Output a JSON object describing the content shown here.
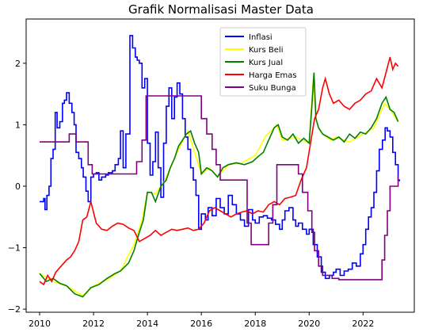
{
  "chart_data": {
    "type": "line",
    "title": "Grafik Normalisasi Master Data",
    "xlabel": "",
    "ylabel": "",
    "xlim": [
      2009.5,
      2023.9
    ],
    "ylim": [
      -2.05,
      2.72
    ],
    "xticks": [
      2010,
      2012,
      2014,
      2016,
      2018,
      2020,
      2022
    ],
    "xtick_labels": [
      "2010",
      "2012",
      "2014",
      "2016",
      "2018",
      "2020",
      "2022"
    ],
    "yticks": [
      -2,
      -1,
      0,
      1,
      2
    ],
    "ytick_labels": [
      "−2",
      "−1",
      "0",
      "1",
      "2"
    ],
    "grid": false,
    "legend_position": "upper center",
    "series": [
      {
        "name": "Inflasi",
        "color": "#0000ff",
        "step": true,
        "x": [
          2010.0,
          2010.15,
          2010.2,
          2010.27,
          2010.35,
          2010.42,
          2010.5,
          2010.58,
          2010.65,
          2010.75,
          2010.85,
          2010.92,
          2011.0,
          2011.1,
          2011.2,
          2011.28,
          2011.35,
          2011.45,
          2011.55,
          2011.62,
          2011.72,
          2011.8,
          2011.9,
          2012.0,
          2012.1,
          2012.2,
          2012.3,
          2012.45,
          2012.55,
          2012.7,
          2012.8,
          2012.92,
          2013.0,
          2013.1,
          2013.2,
          2013.35,
          2013.45,
          2013.55,
          2013.62,
          2013.7,
          2013.8,
          2013.9,
          2014.0,
          2014.1,
          2014.2,
          2014.3,
          2014.4,
          2014.5,
          2014.6,
          2014.7,
          2014.8,
          2014.9,
          2015.0,
          2015.1,
          2015.2,
          2015.3,
          2015.4,
          2015.5,
          2015.6,
          2015.7,
          2015.8,
          2015.9,
          2016.0,
          2016.15,
          2016.25,
          2016.4,
          2016.55,
          2016.7,
          2016.85,
          2017.0,
          2017.15,
          2017.3,
          2017.45,
          2017.6,
          2017.75,
          2017.9,
          2018.0,
          2018.15,
          2018.3,
          2018.45,
          2018.6,
          2018.75,
          2018.9,
          2019.0,
          2019.1,
          2019.25,
          2019.4,
          2019.5,
          2019.6,
          2019.75,
          2019.9,
          2020.0,
          2020.15,
          2020.3,
          2020.45,
          2020.6,
          2020.75,
          2020.9,
          2021.0,
          2021.15,
          2021.3,
          2021.45,
          2021.6,
          2021.75,
          2021.9,
          2022.0,
          2022.1,
          2022.2,
          2022.3,
          2022.4,
          2022.5,
          2022.6,
          2022.72,
          2022.82,
          2022.9,
          2023.0,
          2023.1,
          2023.2,
          2023.3,
          2023.35
        ],
        "y": [
          -0.25,
          -0.2,
          -0.38,
          -0.15,
          0.0,
          0.45,
          0.6,
          1.2,
          0.95,
          1.05,
          1.35,
          1.4,
          1.52,
          1.35,
          1.2,
          1.0,
          0.55,
          0.45,
          0.3,
          0.15,
          -0.08,
          -0.25,
          0.15,
          0.2,
          0.22,
          0.1,
          0.15,
          0.18,
          0.22,
          0.25,
          0.35,
          0.45,
          0.9,
          0.3,
          0.85,
          2.45,
          2.25,
          2.1,
          2.05,
          2.0,
          1.6,
          1.75,
          0.7,
          0.18,
          0.4,
          0.88,
          0.3,
          -0.18,
          0.7,
          1.3,
          1.6,
          1.1,
          1.45,
          1.68,
          1.5,
          1.1,
          0.8,
          0.6,
          0.3,
          0.1,
          -0.15,
          -0.7,
          -0.45,
          -0.55,
          -0.35,
          -0.48,
          -0.2,
          -0.35,
          -0.45,
          -0.15,
          -0.3,
          -0.45,
          -0.55,
          -0.65,
          -0.38,
          -0.55,
          -0.6,
          -0.5,
          -0.48,
          -0.52,
          -0.55,
          -0.62,
          -0.7,
          -0.55,
          -0.4,
          -0.35,
          -0.55,
          -0.65,
          -0.6,
          -0.7,
          -0.78,
          -0.7,
          -0.95,
          -1.15,
          -1.4,
          -1.5,
          -1.45,
          -1.4,
          -1.35,
          -1.45,
          -1.38,
          -1.35,
          -1.25,
          -1.3,
          -1.1,
          -0.95,
          -0.7,
          -0.5,
          -0.35,
          -0.1,
          0.25,
          0.6,
          0.75,
          0.95,
          0.9,
          0.8,
          0.55,
          0.35,
          0.1,
          0.08
        ]
      },
      {
        "name": "Kurs Beli",
        "color": "#ffff00",
        "step": false,
        "x": [
          2010.0,
          2010.5,
          2011.0,
          2011.6,
          2012.0,
          2012.5,
          2013.0,
          2013.5,
          2013.8,
          2014.0,
          2014.3,
          2014.6,
          2014.9,
          2015.2,
          2015.5,
          2015.75,
          2016.0,
          2016.3,
          2016.6,
          2017.0,
          2017.5,
          2018.0,
          2018.4,
          2018.8,
          2019.0,
          2019.5,
          2020.0,
          2020.15,
          2020.25,
          2020.35,
          2020.5,
          2020.8,
          2021.0,
          2021.5,
          2022.0,
          2022.4,
          2022.8,
          2023.0,
          2023.3
        ],
        "y": [
          -1.42,
          -1.55,
          -1.62,
          -1.78,
          -1.62,
          -1.52,
          -1.38,
          -0.95,
          -0.55,
          -0.1,
          -0.12,
          0.05,
          0.35,
          0.65,
          0.9,
          0.55,
          0.2,
          0.3,
          0.15,
          0.35,
          0.38,
          0.5,
          0.82,
          1.0,
          0.75,
          0.8,
          0.7,
          1.75,
          1.1,
          0.95,
          0.85,
          0.75,
          0.8,
          0.72,
          0.85,
          0.95,
          1.35,
          1.25,
          1.05
        ]
      },
      {
        "name": "Kurs Jual",
        "color": "#008000",
        "step": false,
        "x": [
          2010.0,
          2010.25,
          2010.5,
          2010.75,
          2011.0,
          2011.3,
          2011.6,
          2011.9,
          2012.2,
          2012.5,
          2012.8,
          2013.0,
          2013.3,
          2013.5,
          2013.7,
          2013.85,
          2014.0,
          2014.15,
          2014.3,
          2014.5,
          2014.7,
          2014.85,
          2015.0,
          2015.15,
          2015.3,
          2015.45,
          2015.6,
          2015.75,
          2015.9,
          2016.0,
          2016.2,
          2016.4,
          2016.6,
          2016.8,
          2017.0,
          2017.3,
          2017.6,
          2017.9,
          2018.1,
          2018.3,
          2018.5,
          2018.7,
          2018.85,
          2019.0,
          2019.2,
          2019.4,
          2019.6,
          2019.8,
          2020.0,
          2020.1,
          2020.18,
          2020.25,
          2020.35,
          2020.5,
          2020.7,
          2020.9,
          2021.1,
          2021.3,
          2021.5,
          2021.7,
          2021.9,
          2022.1,
          2022.3,
          2022.5,
          2022.7,
          2022.85,
          2023.0,
          2023.15,
          2023.3
        ],
        "y": [
          -1.42,
          -1.55,
          -1.5,
          -1.58,
          -1.62,
          -1.75,
          -1.8,
          -1.65,
          -1.6,
          -1.5,
          -1.42,
          -1.38,
          -1.25,
          -1.05,
          -0.75,
          -0.55,
          -0.1,
          -0.1,
          -0.25,
          0.0,
          0.1,
          0.3,
          0.45,
          0.65,
          0.75,
          0.85,
          0.9,
          0.7,
          0.55,
          0.2,
          0.3,
          0.25,
          0.15,
          0.3,
          0.35,
          0.38,
          0.35,
          0.4,
          0.48,
          0.55,
          0.75,
          0.95,
          1.0,
          0.8,
          0.75,
          0.85,
          0.7,
          0.78,
          0.7,
          1.3,
          1.85,
          1.1,
          0.95,
          0.85,
          0.8,
          0.75,
          0.8,
          0.72,
          0.85,
          0.78,
          0.88,
          0.85,
          0.95,
          1.1,
          1.35,
          1.45,
          1.25,
          1.2,
          1.05
        ]
      },
      {
        "name": "Harga Emas",
        "color": "#ff0000",
        "step": false,
        "x": [
          2010.0,
          2010.15,
          2010.3,
          2010.45,
          2010.6,
          2010.8,
          2011.0,
          2011.15,
          2011.3,
          2011.45,
          2011.6,
          2011.75,
          2011.9,
          2012.1,
          2012.3,
          2012.5,
          2012.7,
          2012.9,
          2013.1,
          2013.3,
          2013.5,
          2013.7,
          2013.9,
          2014.1,
          2014.3,
          2014.5,
          2014.7,
          2014.9,
          2015.1,
          2015.3,
          2015.5,
          2015.7,
          2015.9,
          2016.1,
          2016.3,
          2016.5,
          2016.7,
          2016.9,
          2017.1,
          2017.3,
          2017.5,
          2017.7,
          2017.9,
          2018.1,
          2018.3,
          2018.5,
          2018.7,
          2018.9,
          2019.1,
          2019.3,
          2019.5,
          2019.7,
          2019.9,
          2020.05,
          2020.2,
          2020.35,
          2020.5,
          2020.6,
          2020.75,
          2020.9,
          2021.1,
          2021.3,
          2021.5,
          2021.7,
          2021.9,
          2022.1,
          2022.3,
          2022.5,
          2022.7,
          2022.85,
          2023.0,
          2023.1,
          2023.2,
          2023.3
        ],
        "y": [
          -1.55,
          -1.6,
          -1.45,
          -1.55,
          -1.4,
          -1.3,
          -1.2,
          -1.15,
          -1.05,
          -0.9,
          -0.55,
          -0.5,
          -0.25,
          -0.6,
          -0.7,
          -0.72,
          -0.65,
          -0.6,
          -0.62,
          -0.68,
          -0.72,
          -0.9,
          -0.85,
          -0.8,
          -0.72,
          -0.8,
          -0.75,
          -0.7,
          -0.72,
          -0.7,
          -0.68,
          -0.72,
          -0.7,
          -0.6,
          -0.4,
          -0.35,
          -0.4,
          -0.45,
          -0.5,
          -0.45,
          -0.42,
          -0.4,
          -0.45,
          -0.4,
          -0.42,
          -0.3,
          -0.25,
          -0.3,
          -0.2,
          -0.18,
          -0.15,
          0.1,
          0.3,
          0.7,
          1.1,
          1.25,
          1.6,
          1.75,
          1.5,
          1.35,
          1.4,
          1.3,
          1.25,
          1.35,
          1.4,
          1.5,
          1.55,
          1.75,
          1.6,
          1.85,
          2.1,
          1.9,
          2.0,
          1.95
        ]
      },
      {
        "name": "Suku Bunga",
        "color": "#800080",
        "step": true,
        "x": [
          2010.0,
          2011.1,
          2011.35,
          2011.8,
          2011.95,
          2012.1,
          2013.45,
          2013.6,
          2013.8,
          2013.95,
          2015.8,
          2016.0,
          2016.2,
          2016.4,
          2016.55,
          2016.7,
          2017.7,
          2017.85,
          2018.3,
          2018.5,
          2018.65,
          2018.8,
          2019.5,
          2019.6,
          2019.75,
          2019.95,
          2020.1,
          2020.2,
          2020.35,
          2020.5,
          2020.85,
          2021.1,
          2022.6,
          2022.7,
          2022.8,
          2022.9,
          2023.0,
          2023.3
        ],
        "y": [
          0.72,
          0.85,
          0.72,
          0.35,
          0.2,
          0.2,
          0.2,
          0.4,
          0.75,
          1.47,
          1.47,
          1.1,
          0.85,
          0.6,
          0.35,
          0.1,
          -0.6,
          -0.95,
          -0.95,
          -0.6,
          -0.3,
          0.35,
          0.35,
          0.2,
          -0.1,
          -0.4,
          -0.75,
          -1.05,
          -1.3,
          -1.45,
          -1.5,
          -1.52,
          -1.52,
          -1.2,
          -0.8,
          -0.4,
          0.0,
          0.18
        ]
      }
    ]
  }
}
